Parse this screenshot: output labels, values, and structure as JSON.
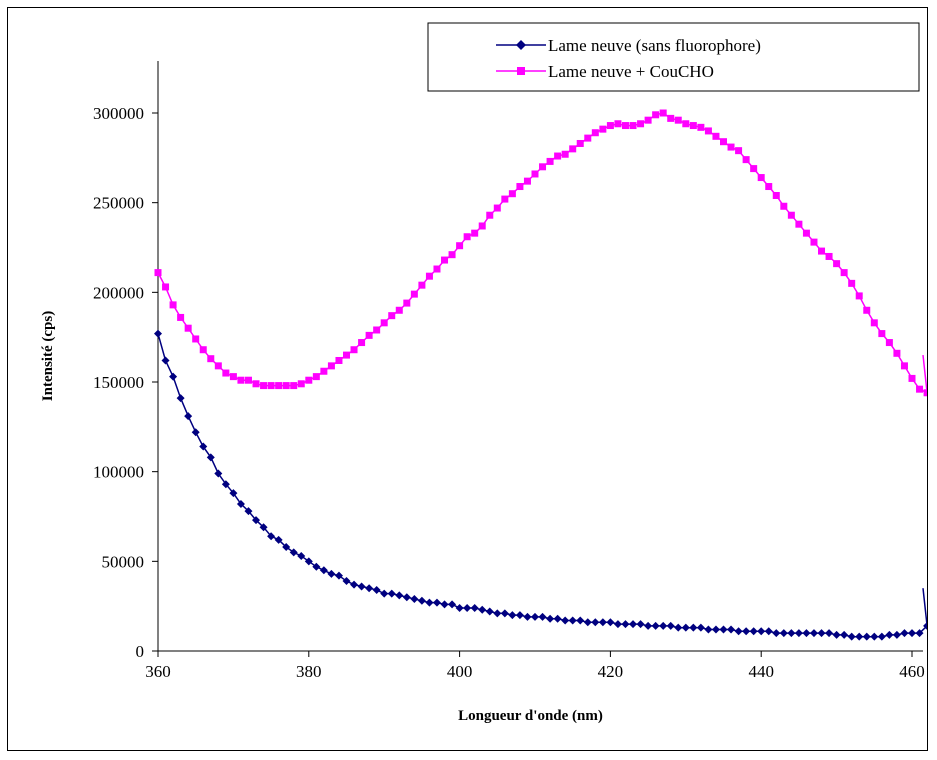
{
  "chart_data": {
    "type": "line",
    "title": "",
    "xlabel": "Longueur d'onde (nm)",
    "ylabel": "Intensité (cps)",
    "xlim": [
      360,
      462
    ],
    "ylim": [
      0,
      300000
    ],
    "x_ticks": [
      360,
      380,
      400,
      420,
      440,
      460
    ],
    "y_ticks": [
      0,
      50000,
      100000,
      150000,
      200000,
      250000,
      300000
    ],
    "x_tick_labels": [
      "360",
      "380",
      "400",
      "420",
      "440",
      "460"
    ],
    "y_tick_labels": [
      "0",
      "50000",
      "100000",
      "150000",
      "200000",
      "250000",
      "300000"
    ],
    "grid": false,
    "legend_position": "top-right",
    "x": [
      360,
      361,
      362,
      363,
      364,
      365,
      366,
      367,
      368,
      369,
      370,
      371,
      372,
      373,
      374,
      375,
      376,
      377,
      378,
      379,
      380,
      381,
      382,
      383,
      384,
      385,
      386,
      387,
      388,
      389,
      390,
      391,
      392,
      393,
      394,
      395,
      396,
      397,
      398,
      399,
      400,
      401,
      402,
      403,
      404,
      405,
      406,
      407,
      408,
      409,
      410,
      411,
      412,
      413,
      414,
      415,
      416,
      417,
      418,
      419,
      420,
      421,
      422,
      423,
      424,
      425,
      426,
      427,
      428,
      429,
      430,
      431,
      432,
      433,
      434,
      435,
      436,
      437,
      438,
      439,
      440,
      441,
      442,
      443,
      444,
      445,
      446,
      447,
      448,
      449,
      450,
      451,
      452,
      453,
      454,
      455,
      456,
      457,
      458,
      459,
      460,
      461,
      462
    ],
    "series": [
      {
        "name": "Lame neuve (sans fluorophore)",
        "color": "#000080",
        "marker": "diamond",
        "values": [
          177000,
          162000,
          153000,
          141000,
          131000,
          122000,
          114000,
          108000,
          99000,
          93000,
          88000,
          82000,
          78000,
          73000,
          69000,
          64000,
          62000,
          58000,
          55000,
          53000,
          50000,
          47000,
          45000,
          43000,
          42000,
          39000,
          37000,
          36000,
          35000,
          34000,
          32000,
          32000,
          31000,
          30000,
          29000,
          28000,
          27000,
          27000,
          26000,
          26000,
          24000,
          24000,
          24000,
          23000,
          22000,
          21000,
          21000,
          20000,
          20000,
          19000,
          19000,
          19000,
          18000,
          18000,
          17000,
          17000,
          17000,
          16000,
          16000,
          16000,
          16000,
          15000,
          15000,
          15000,
          15000,
          14000,
          14000,
          14000,
          14000,
          13000,
          13000,
          13000,
          13000,
          12000,
          12000,
          12000,
          12000,
          11000,
          11000,
          11000,
          11000,
          11000,
          10000,
          10000,
          10000,
          10000,
          10000,
          10000,
          10000,
          10000,
          9000,
          9000,
          8000,
          8000,
          8000,
          8000,
          8000,
          9000,
          9000,
          10000,
          10000,
          10000,
          14000
        ]
      },
      {
        "name": "Lame neuve + CouCHO",
        "color": "#FF00FF",
        "marker": "square",
        "values": [
          211000,
          203000,
          193000,
          186000,
          180000,
          174000,
          168000,
          163000,
          159000,
          155000,
          153000,
          151000,
          151000,
          149000,
          148000,
          148000,
          148000,
          148000,
          148000,
          149000,
          151000,
          153000,
          156000,
          159000,
          162000,
          165000,
          168000,
          172000,
          176000,
          179000,
          183000,
          187000,
          190000,
          194000,
          199000,
          204000,
          209000,
          213000,
          218000,
          221000,
          226000,
          231000,
          233000,
          237000,
          243000,
          247000,
          252000,
          255000,
          259000,
          262000,
          266000,
          270000,
          273000,
          276000,
          277000,
          280000,
          283000,
          286000,
          289000,
          291000,
          293000,
          294000,
          293000,
          293000,
          294000,
          296000,
          299000,
          300000,
          297000,
          296000,
          294000,
          293000,
          292000,
          290000,
          287000,
          284000,
          281000,
          279000,
          274000,
          269000,
          264000,
          259000,
          254000,
          248000,
          243000,
          238000,
          233000,
          228000,
          223000,
          220000,
          216000,
          211000,
          205000,
          198000,
          190000,
          183000,
          177000,
          172000,
          166000,
          159000,
          152000,
          146000,
          144000
        ]
      }
    ],
    "tail_values": {
      "Lame neuve (sans fluorophore)": 35000,
      "Lame neuve + CouCHO": 165000
    }
  }
}
